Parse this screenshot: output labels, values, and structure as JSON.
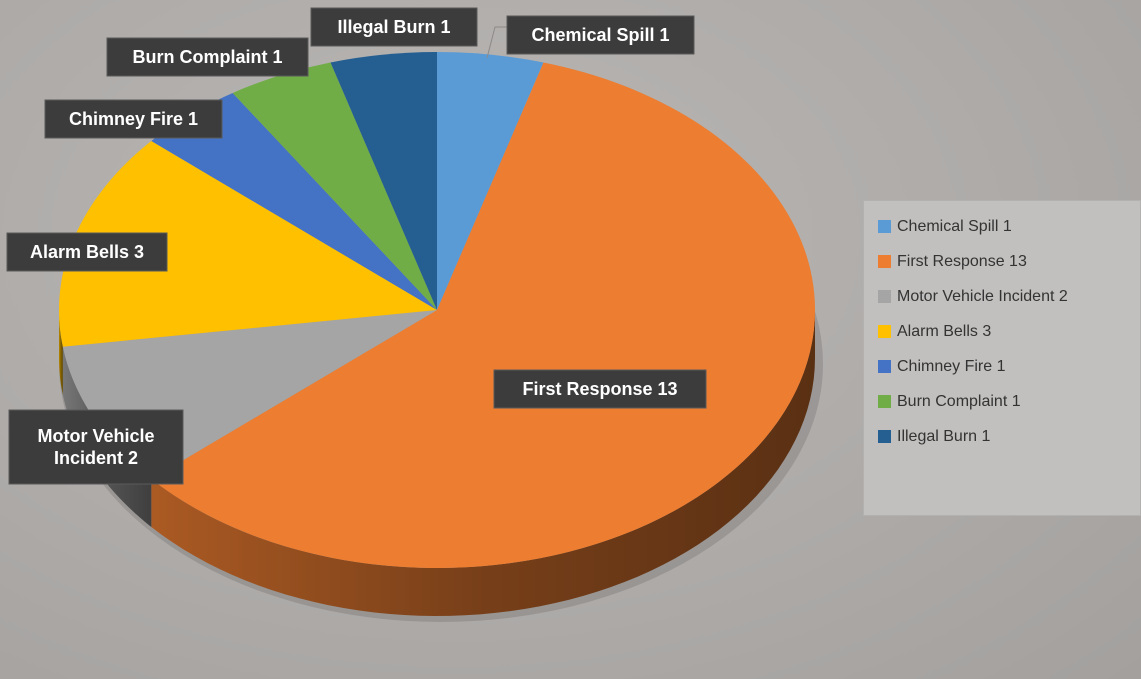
{
  "chart_data": {
    "type": "pie",
    "three_d": true,
    "categories": [
      "Chemical Spill",
      "First Response",
      "Motor Vehicle Incident",
      "Alarm Bells",
      "Chimney Fire",
      "Burn Complaint",
      "Illegal Burn"
    ],
    "values": [
      1,
      13,
      2,
      3,
      1,
      1,
      1
    ],
    "labels": [
      "Chemical Spill 1",
      "First Response 13",
      "Motor Vehicle Incident 2",
      "Alarm Bells 3",
      "Chimney Fire 1",
      "Burn Complaint 1",
      "Illegal Burn 1"
    ],
    "label_lines": [
      [
        "Chemical Spill 1"
      ],
      [
        "First Response 13"
      ],
      [
        "Motor Vehicle",
        "Incident 2"
      ],
      [
        "Alarm Bells 3"
      ],
      [
        "Chimney Fire 1"
      ],
      [
        "Burn Complaint 1"
      ],
      [
        "Illegal Burn 1"
      ]
    ],
    "colors": [
      "#5b9bd5",
      "#ed7d31",
      "#a5a5a5",
      "#ffc000",
      "#4472c4",
      "#70ad47",
      "#255e91"
    ],
    "legend_position": "right",
    "title": ""
  },
  "legend": {
    "items": [
      {
        "label": "Chemical Spill 1",
        "color": "#5b9bd5"
      },
      {
        "label": "First Response 13",
        "color": "#ed7d31"
      },
      {
        "label": "Motor Vehicle Incident 2",
        "color": "#a5a5a5"
      },
      {
        "label": "Alarm Bells 3",
        "color": "#ffc000"
      },
      {
        "label": "Chimney Fire 1",
        "color": "#4472c4"
      },
      {
        "label": "Burn Complaint 1",
        "color": "#70ad47"
      },
      {
        "label": "Illegal Burn 1",
        "color": "#255e91"
      }
    ]
  }
}
